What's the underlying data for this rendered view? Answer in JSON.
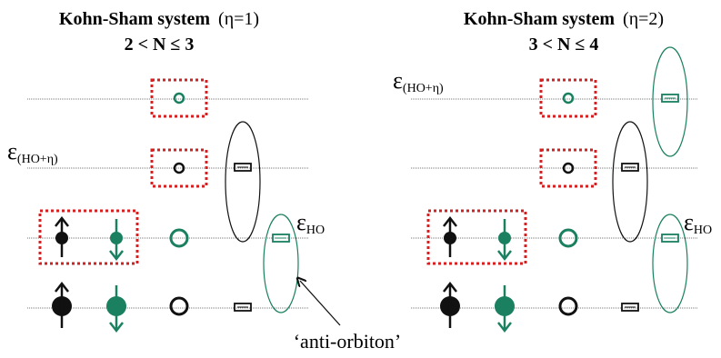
{
  "left_panel": {
    "title_bold": "Kohn-Sham system",
    "title_eta": "(η=1)",
    "range": "2 < N ≤ 3",
    "eps_label": "ε",
    "eps_sub": "(HO+η)",
    "eps_ho": "ε",
    "eps_ho_sub": "HO"
  },
  "right_panel": {
    "title_bold": "Kohn-Sham system",
    "title_eta": "(η=2)",
    "range": "3 < N ≤ 4",
    "eps_label": "ε",
    "eps_sub": "(HO+η)",
    "eps_ho": "ε",
    "eps_ho_sub": "HO"
  },
  "annotation": "‘anti-orbiton’",
  "colors": {
    "black": "#111111",
    "green": "#1a8060",
    "red": "#d42020",
    "line": "#777777"
  }
}
